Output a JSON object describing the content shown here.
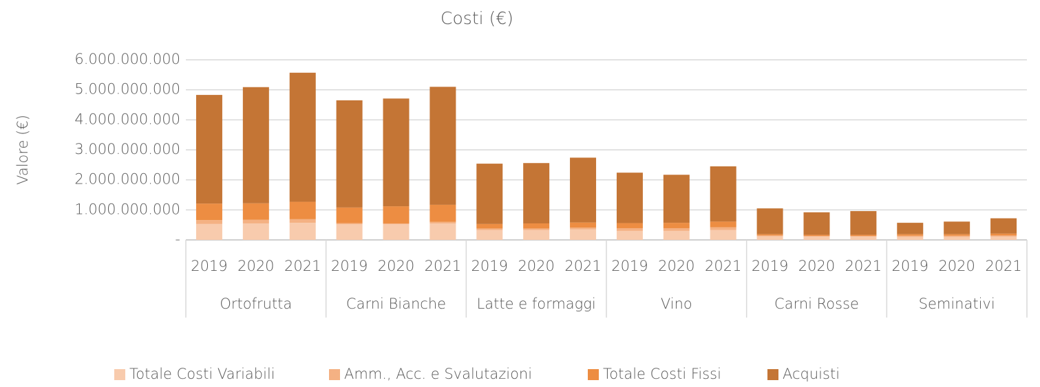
{
  "chart_data": {
    "type": "stacked-bar",
    "title": "Costi (€)",
    "y_label": "Valore (€)",
    "categories": [
      "2019",
      "2020",
      "2021",
      "2019",
      "2020",
      "2021",
      "2019",
      "2020",
      "2021",
      "2019",
      "2020",
      "2021",
      "2019",
      "2020",
      "2021",
      "2019",
      "2020",
      "2021"
    ],
    "groups": [
      "Ortofrutta",
      "Carni Bianche",
      "Latte e formaggi",
      "Vino",
      "Carni Rosse",
      "Seminativi"
    ],
    "series": [
      {
        "name": "Totale Costi Variabili",
        "color": "#f8cbad",
        "values": [
          530000000,
          550000000,
          570000000,
          520000000,
          520000000,
          550000000,
          330000000,
          330000000,
          350000000,
          300000000,
          300000000,
          330000000,
          120000000,
          110000000,
          110000000,
          100000000,
          100000000,
          110000000
        ]
      },
      {
        "name": "Amm., Acc. e Svalutazioni",
        "color": "#f4b183",
        "values": [
          130000000,
          120000000,
          120000000,
          40000000,
          30000000,
          50000000,
          50000000,
          50000000,
          60000000,
          90000000,
          90000000,
          90000000,
          30000000,
          20000000,
          20000000,
          40000000,
          40000000,
          40000000
        ]
      },
      {
        "name": "Totale Costi Fissi",
        "color": "#ed8d42",
        "values": [
          550000000,
          550000000,
          580000000,
          520000000,
          570000000,
          570000000,
          150000000,
          170000000,
          170000000,
          170000000,
          180000000,
          190000000,
          40000000,
          40000000,
          40000000,
          50000000,
          50000000,
          60000000
        ]
      },
      {
        "name": "Acquisti",
        "color": "#c47535",
        "values": [
          3620000000,
          3870000000,
          4300000000,
          3570000000,
          3590000000,
          3930000000,
          2010000000,
          2010000000,
          2160000000,
          1680000000,
          1600000000,
          1840000000,
          860000000,
          750000000,
          790000000,
          380000000,
          420000000,
          510000000
        ]
      }
    ],
    "ylim": [
      0,
      6000000000
    ],
    "yticks": [
      {
        "value": 0,
        "label": "-"
      },
      {
        "value": 1000000000,
        "label": "1.000.000.000"
      },
      {
        "value": 2000000000,
        "label": "2.000.000.000"
      },
      {
        "value": 3000000000,
        "label": "3.000.000.000"
      },
      {
        "value": 4000000000,
        "label": "4.000.000.000"
      },
      {
        "value": 5000000000,
        "label": "5.000.000.000"
      },
      {
        "value": 6000000000,
        "label": "6.000.000.000"
      }
    ],
    "grid": true,
    "legend": "bottom"
  }
}
